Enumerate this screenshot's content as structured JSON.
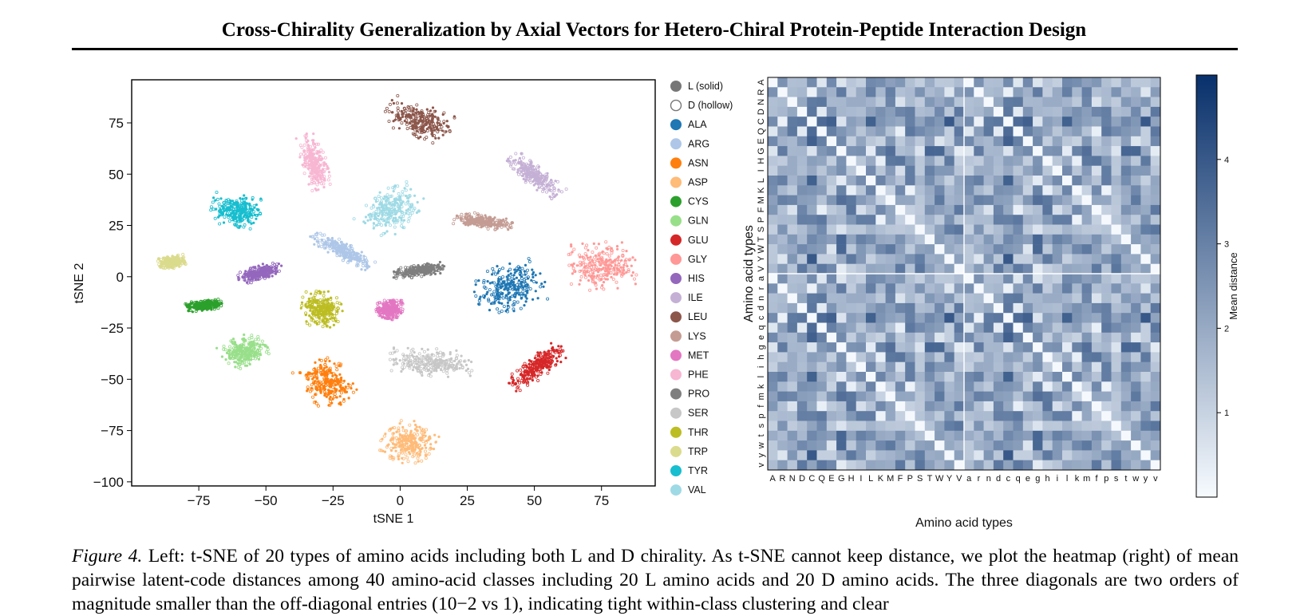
{
  "header": {
    "title": "Cross-Chirality Generalization by Axial Vectors for Hetero-Chiral Protein-Peptide Interaction Design"
  },
  "caption": {
    "label": "Figure 4.",
    "text": "Left: t-SNE of 20 types of amino acids including both L and D chirality. As t-SNE cannot keep distance, we plot the heatmap (right) of mean pairwise latent-code distances among 40 amino-acid classes including 20 L amino acids and 20 D amino acids. The three diagonals are two orders of magnitude smaller than the off-diagonal entries (10−2 vs 1), indicating tight within-class clustering and clear"
  },
  "chart_data": [
    {
      "type": "scatter",
      "xlabel": "tSNE 1",
      "ylabel": "tSNE 2",
      "xlim": [
        -100,
        95
      ],
      "ylim": [
        -102,
        96
      ],
      "xticks": [
        -75,
        -50,
        -25,
        0,
        25,
        50,
        75
      ],
      "yticks": [
        75,
        50,
        25,
        0,
        -25,
        -50,
        -75,
        -100
      ],
      "legend_position": "right",
      "legend": [
        {
          "name": "L (solid)",
          "color": "#777777",
          "style": "solid"
        },
        {
          "name": "D (hollow)",
          "color": "#777777",
          "style": "hollow"
        },
        {
          "name": "ALA",
          "color": "#1f77b4"
        },
        {
          "name": "ARG",
          "color": "#aec7e8"
        },
        {
          "name": "ASN",
          "color": "#ff7f0e"
        },
        {
          "name": "ASP",
          "color": "#ffbb78"
        },
        {
          "name": "CYS",
          "color": "#2ca02c"
        },
        {
          "name": "GLN",
          "color": "#98df8a"
        },
        {
          "name": "GLU",
          "color": "#d62728"
        },
        {
          "name": "GLY",
          "color": "#ff9896"
        },
        {
          "name": "HIS",
          "color": "#9467bd"
        },
        {
          "name": "ILE",
          "color": "#c5b0d5"
        },
        {
          "name": "LEU",
          "color": "#8c564b"
        },
        {
          "name": "LYS",
          "color": "#c49c94"
        },
        {
          "name": "MET",
          "color": "#e377c2"
        },
        {
          "name": "PHE",
          "color": "#f7b6d2"
        },
        {
          "name": "PRO",
          "color": "#7f7f7f"
        },
        {
          "name": "SER",
          "color": "#c7c7c7"
        },
        {
          "name": "THR",
          "color": "#bcbd22"
        },
        {
          "name": "TRP",
          "color": "#dbdb8d"
        },
        {
          "name": "TYR",
          "color": "#17becf"
        },
        {
          "name": "VAL",
          "color": "#9edae5"
        }
      ],
      "clusters": [
        {
          "name": "ALA",
          "cx": 40,
          "cy": -5,
          "rx": 14,
          "ry": 12,
          "angle": 20
        },
        {
          "name": "ARG",
          "cx": -22,
          "cy": 13,
          "rx": 14,
          "ry": 4,
          "angle": -35
        },
        {
          "name": "ASN",
          "cx": -27,
          "cy": -52,
          "rx": 9,
          "ry": 12,
          "angle": 30
        },
        {
          "name": "ASP",
          "cx": 3,
          "cy": -81,
          "rx": 10,
          "ry": 10,
          "angle": -40
        },
        {
          "name": "CYS",
          "cx": -73,
          "cy": -14,
          "rx": 7,
          "ry": 2.5,
          "angle": 10
        },
        {
          "name": "GLN",
          "cx": -58,
          "cy": -36,
          "rx": 9,
          "ry": 7,
          "angle": 30
        },
        {
          "name": "GLU",
          "cx": 51,
          "cy": -44,
          "rx": 14,
          "ry": 5,
          "angle": 45
        },
        {
          "name": "GLY",
          "cx": 75,
          "cy": 5,
          "rx": 13,
          "ry": 12,
          "angle": 0
        },
        {
          "name": "HIS",
          "cx": -52,
          "cy": 2,
          "rx": 9,
          "ry": 3.5,
          "angle": 25
        },
        {
          "name": "ILE",
          "cx": 50,
          "cy": 49,
          "rx": 13,
          "ry": 4.5,
          "angle": -45
        },
        {
          "name": "LEU",
          "cx": 7,
          "cy": 76,
          "rx": 14,
          "ry": 8,
          "angle": -25
        },
        {
          "name": "LYS",
          "cx": 31,
          "cy": 27,
          "rx": 11,
          "ry": 3.5,
          "angle": -10
        },
        {
          "name": "MET",
          "cx": -4,
          "cy": -16,
          "rx": 5,
          "ry": 5,
          "angle": 0
        },
        {
          "name": "PHE",
          "cx": -32,
          "cy": 56,
          "rx": 5,
          "ry": 14,
          "angle": 10
        },
        {
          "name": "PRO",
          "cx": 7,
          "cy": 3,
          "rx": 10,
          "ry": 3,
          "angle": 10
        },
        {
          "name": "SER",
          "cx": 11,
          "cy": -42,
          "rx": 16,
          "ry": 7,
          "angle": -5
        },
        {
          "name": "THR",
          "cx": -29,
          "cy": -16,
          "rx": 8,
          "ry": 9,
          "angle": 0
        },
        {
          "name": "TRP",
          "cx": -85,
          "cy": 7,
          "rx": 5,
          "ry": 3,
          "angle": 15
        },
        {
          "name": "TYR",
          "cx": -61,
          "cy": 32,
          "rx": 10,
          "ry": 8,
          "angle": -10
        },
        {
          "name": "VAL",
          "cx": -3,
          "cy": 33,
          "rx": 9,
          "ry": 14,
          "angle": -35
        }
      ]
    },
    {
      "type": "heatmap",
      "xlabel": "Amino acid types",
      "ylabel": "Amino acid types",
      "categories": [
        "A",
        "R",
        "N",
        "D",
        "C",
        "Q",
        "E",
        "G",
        "H",
        "I",
        "L",
        "K",
        "M",
        "F",
        "P",
        "S",
        "T",
        "W",
        "Y",
        "V",
        "a",
        "r",
        "n",
        "d",
        "c",
        "q",
        "e",
        "g",
        "h",
        "i",
        "l",
        "k",
        "m",
        "f",
        "p",
        "s",
        "t",
        "w",
        "y",
        "v"
      ],
      "colorbar_label": "Mean distance",
      "colorbar_ticks": [
        1,
        2,
        3,
        4
      ],
      "vmin": 0,
      "vmax": 5,
      "colormap": [
        "#f7fbff",
        "#08306b"
      ],
      "diagonal_value": 0.04
    }
  ]
}
